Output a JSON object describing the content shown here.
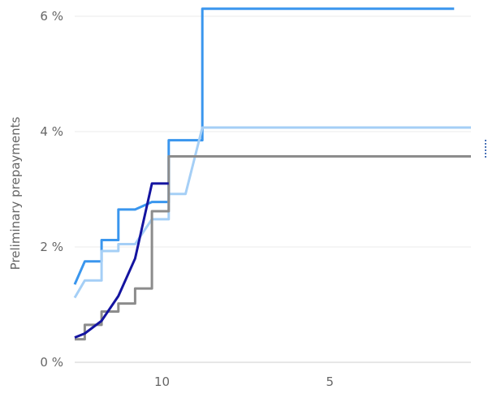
{
  "chart_data": {
    "type": "line",
    "title": "",
    "xlabel": "",
    "ylabel": "Preliminary prepayments",
    "x_tick_labels": [
      "10",
      "5"
    ],
    "y_tick_labels": [
      "0 %",
      "2 %",
      "4 %",
      "6 %"
    ],
    "ylim": [
      0,
      6
    ],
    "grid": true,
    "legend": "none",
    "x_note": "Horizontal axis counts down; x values are positions along it in tick units (10 at the first tick, 5 at the second).",
    "xlim": [
      12.6,
      0.8
    ],
    "series": [
      {
        "color": "#3a96ee",
        "x": [
          12.6,
          12.3,
          12.3,
          11.8,
          11.8,
          11.3,
          11.3,
          10.8,
          10.8,
          10.3,
          10.3,
          9.8,
          9.8,
          9.3,
          9.3,
          8.8,
          8.8,
          8.3,
          8.3,
          1.3
        ],
        "y": [
          1.35,
          1.75,
          1.75,
          1.75,
          2.12,
          2.12,
          2.65,
          2.65,
          2.65,
          2.78,
          2.78,
          2.78,
          3.85,
          3.85,
          3.85,
          3.85,
          6.13,
          6.13,
          6.13,
          6.13
        ]
      },
      {
        "color": "#a5cff6",
        "x": [
          12.6,
          12.3,
          12.3,
          11.8,
          11.8,
          11.3,
          11.3,
          10.8,
          10.8,
          10.3,
          10.3,
          9.8,
          9.8,
          9.3,
          9.3,
          8.8,
          8.8,
          8.3,
          8.3,
          0.8
        ],
        "y": [
          1.12,
          1.42,
          1.42,
          1.42,
          1.93,
          1.93,
          2.05,
          2.05,
          2.05,
          2.48,
          2.48,
          2.48,
          2.92,
          2.92,
          2.92,
          4.07,
          4.07,
          4.07,
          4.07,
          4.07
        ]
      },
      {
        "color": "#8c8c8c",
        "x": [
          12.6,
          12.3,
          12.3,
          11.8,
          11.8,
          11.3,
          11.3,
          10.8,
          10.8,
          10.3,
          10.3,
          9.8,
          9.8,
          9.3,
          9.3,
          8.8,
          8.8,
          8.3,
          8.3,
          0.8
        ],
        "y": [
          0.4,
          0.4,
          0.65,
          0.65,
          0.88,
          0.88,
          1.02,
          1.02,
          1.28,
          1.28,
          2.62,
          2.62,
          3.57,
          3.57,
          3.57,
          3.57,
          3.57,
          3.57,
          3.57,
          3.57
        ]
      },
      {
        "color": "#1414a0",
        "x": [
          12.6,
          12.3,
          12.3,
          11.8,
          11.8,
          11.3,
          11.3,
          10.8,
          10.8,
          10.3,
          10.3,
          9.8
        ],
        "y": [
          0.43,
          0.5,
          0.5,
          0.72,
          0.72,
          1.15,
          1.15,
          1.8,
          1.8,
          3.1,
          3.1,
          3.1
        ]
      }
    ]
  }
}
